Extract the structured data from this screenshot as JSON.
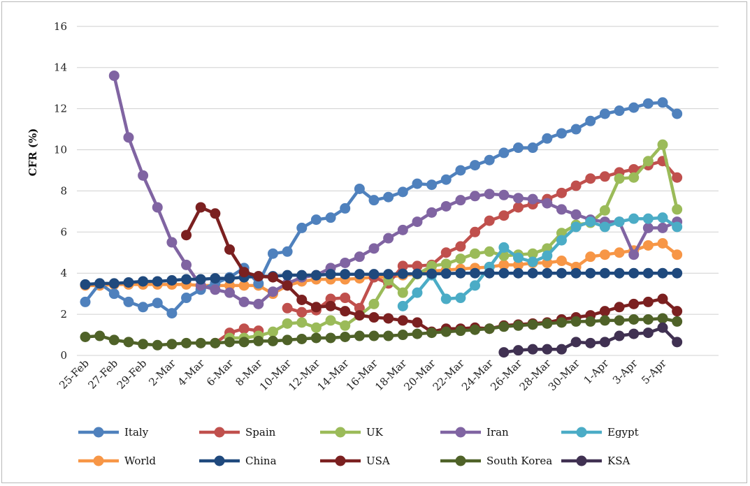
{
  "chart_data": {
    "type": "line",
    "ylabel": "CFR (%)",
    "ylim": [
      0,
      16
    ],
    "yticks": [
      0,
      2,
      4,
      6,
      8,
      10,
      12,
      14,
      16
    ],
    "grid": "horizontal",
    "legend_position": "bottom",
    "x": [
      "25-Feb",
      "26-Feb",
      "27-Feb",
      "28-Feb",
      "29-Feb",
      "1-Mar",
      "2-Mar",
      "3-Mar",
      "4-Mar",
      "5-Mar",
      "6-Mar",
      "7-Mar",
      "8-Mar",
      "9-Mar",
      "10-Mar",
      "11-Mar",
      "12-Mar",
      "13-Mar",
      "14-Mar",
      "15-Mar",
      "16-Mar",
      "17-Mar",
      "18-Mar",
      "19-Mar",
      "20-Mar",
      "21-Mar",
      "22-Mar",
      "23-Mar",
      "24-Mar",
      "25-Mar",
      "26-Mar",
      "27-Mar",
      "28-Mar",
      "29-Mar",
      "30-Mar",
      "31-Mar",
      "1-Apr",
      "2-Apr",
      "3-Apr",
      "4-Apr",
      "5-Apr",
      "6-Apr"
    ],
    "xtick_labels": [
      "25-Feb",
      "27-Feb",
      "29-Feb",
      "2-Mar",
      "4-Mar",
      "6-Mar",
      "8-Mar",
      "10-Mar",
      "12-Mar",
      "14-Mar",
      "16-Mar",
      "18-Mar",
      "20-Mar",
      "22-Mar",
      "24-Mar",
      "26-Mar",
      "28-Mar",
      "30-Mar",
      "1-Apr",
      "3-Apr",
      "5-Apr"
    ],
    "series": [
      {
        "name": "World",
        "color": "#f79646",
        "values": [
          3.4,
          3.4,
          3.45,
          3.45,
          3.45,
          3.45,
          3.45,
          3.45,
          3.4,
          3.4,
          3.4,
          3.4,
          3.4,
          3.0,
          3.4,
          3.6,
          3.7,
          3.7,
          3.7,
          3.75,
          3.8,
          3.8,
          3.9,
          3.95,
          4.1,
          4.15,
          4.2,
          4.25,
          4.3,
          4.4,
          4.4,
          4.5,
          4.5,
          4.6,
          4.3,
          4.8,
          4.9,
          5.0,
          5.1,
          5.35,
          5.45,
          4.9
        ]
      },
      {
        "name": "Italy",
        "color": "#4f81bd",
        "values": [
          2.6,
          3.5,
          3.0,
          2.6,
          2.35,
          2.55,
          2.05,
          2.8,
          3.2,
          3.5,
          3.8,
          4.25,
          3.5,
          4.95,
          5.05,
          6.2,
          6.6,
          6.7,
          7.15,
          8.1,
          7.55,
          7.7,
          7.95,
          8.35,
          8.3,
          8.55,
          9.0,
          9.25,
          9.5,
          9.85,
          10.1,
          10.1,
          10.55,
          10.8,
          11.0,
          11.4,
          11.75,
          11.9,
          12.05,
          12.25,
          12.3,
          11.75
        ]
      },
      {
        "name": "Spain",
        "color": "#c0504d",
        "values": [
          null,
          null,
          null,
          null,
          null,
          null,
          null,
          null,
          null,
          0.6,
          1.1,
          1.3,
          1.2,
          null,
          2.3,
          2.1,
          2.2,
          2.75,
          2.8,
          2.3,
          3.8,
          3.5,
          4.35,
          4.35,
          4.4,
          5.0,
          5.3,
          6.0,
          6.55,
          6.8,
          7.2,
          7.35,
          7.6,
          7.9,
          8.25,
          8.6,
          8.7,
          8.9,
          9.05,
          9.25,
          9.45,
          8.65
        ]
      },
      {
        "name": "UK",
        "color": "#9bbb59",
        "values": [
          null,
          null,
          null,
          null,
          null,
          null,
          null,
          null,
          null,
          null,
          0.85,
          0.85,
          0.95,
          1.15,
          1.55,
          1.6,
          1.35,
          1.7,
          1.45,
          1.95,
          2.5,
          3.65,
          3.05,
          3.95,
          4.35,
          4.45,
          4.7,
          4.95,
          5.05,
          4.85,
          4.9,
          4.95,
          5.2,
          5.95,
          6.35,
          6.45,
          7.05,
          8.6,
          8.65,
          9.45,
          10.25,
          7.1
        ]
      },
      {
        "name": "Iran",
        "color": "#8064a2",
        "values": [
          null,
          null,
          13.6,
          10.6,
          8.75,
          7.2,
          5.5,
          4.4,
          3.4,
          3.2,
          3.05,
          2.6,
          2.5,
          3.1,
          3.5,
          3.8,
          3.9,
          4.25,
          4.5,
          4.8,
          5.2,
          5.7,
          6.1,
          6.5,
          6.95,
          7.25,
          7.55,
          7.75,
          7.85,
          7.8,
          7.65,
          7.6,
          7.4,
          7.1,
          6.85,
          6.6,
          6.5,
          6.5,
          4.9,
          6.2,
          6.2,
          6.5
        ]
      },
      {
        "name": "Egypt",
        "color": "#4bacc6",
        "values": [
          null,
          null,
          null,
          null,
          null,
          null,
          null,
          null,
          null,
          null,
          null,
          null,
          null,
          null,
          null,
          null,
          null,
          null,
          null,
          null,
          null,
          null,
          2.4,
          3.05,
          3.9,
          2.75,
          2.8,
          3.4,
          4.3,
          5.25,
          4.75,
          4.55,
          4.85,
          5.6,
          6.25,
          6.5,
          6.25,
          6.5,
          6.65,
          6.65,
          6.7,
          6.25
        ]
      },
      {
        "name": "China",
        "color": "#1f497d",
        "values": [
          3.45,
          3.5,
          3.5,
          3.55,
          3.6,
          3.6,
          3.65,
          3.7,
          3.7,
          3.75,
          3.75,
          3.8,
          3.85,
          3.85,
          3.9,
          3.9,
          3.9,
          3.95,
          3.95,
          3.95,
          3.95,
          3.95,
          3.97,
          3.97,
          3.97,
          3.98,
          4.0,
          4.0,
          4.0,
          4.0,
          4.0,
          4.0,
          4.0,
          4.0,
          4.0,
          4.0,
          4.0,
          4.0,
          4.0,
          4.0,
          4.0,
          4.0
        ]
      },
      {
        "name": "USA",
        "color": "#7b2020",
        "values": [
          null,
          null,
          null,
          null,
          null,
          null,
          null,
          5.85,
          7.2,
          6.9,
          5.15,
          4.05,
          3.85,
          3.8,
          3.4,
          2.7,
          2.35,
          2.4,
          2.15,
          1.95,
          1.85,
          1.8,
          1.7,
          1.6,
          1.15,
          1.3,
          1.3,
          1.35,
          1.3,
          1.45,
          1.5,
          1.55,
          1.6,
          1.75,
          1.85,
          1.95,
          2.15,
          2.35,
          2.5,
          2.6,
          2.75,
          2.15
        ]
      },
      {
        "name": "South Korea",
        "color": "#4f6228",
        "values": [
          0.9,
          0.95,
          0.75,
          0.65,
          0.55,
          0.5,
          0.55,
          0.6,
          0.6,
          0.6,
          0.65,
          0.65,
          0.7,
          0.7,
          0.75,
          0.8,
          0.85,
          0.85,
          0.9,
          0.95,
          0.95,
          0.95,
          1.0,
          1.05,
          1.1,
          1.15,
          1.2,
          1.25,
          1.3,
          1.4,
          1.45,
          1.5,
          1.55,
          1.6,
          1.65,
          1.65,
          1.7,
          1.7,
          1.75,
          1.75,
          1.8,
          1.65
        ]
      },
      {
        "name": "KSA",
        "color": "#403152",
        "values": [
          null,
          null,
          null,
          null,
          null,
          null,
          null,
          null,
          null,
          null,
          null,
          null,
          null,
          null,
          null,
          null,
          null,
          null,
          null,
          null,
          null,
          null,
          null,
          null,
          null,
          null,
          null,
          null,
          null,
          0.15,
          0.25,
          0.3,
          0.3,
          0.3,
          0.65,
          0.6,
          0.65,
          0.95,
          1.05,
          1.1,
          1.35,
          0.65
        ]
      }
    ],
    "legend_order": [
      "Italy",
      "Spain",
      "UK",
      "Iran",
      "Egypt",
      "World",
      "China",
      "USA",
      "South Korea",
      "KSA"
    ]
  }
}
